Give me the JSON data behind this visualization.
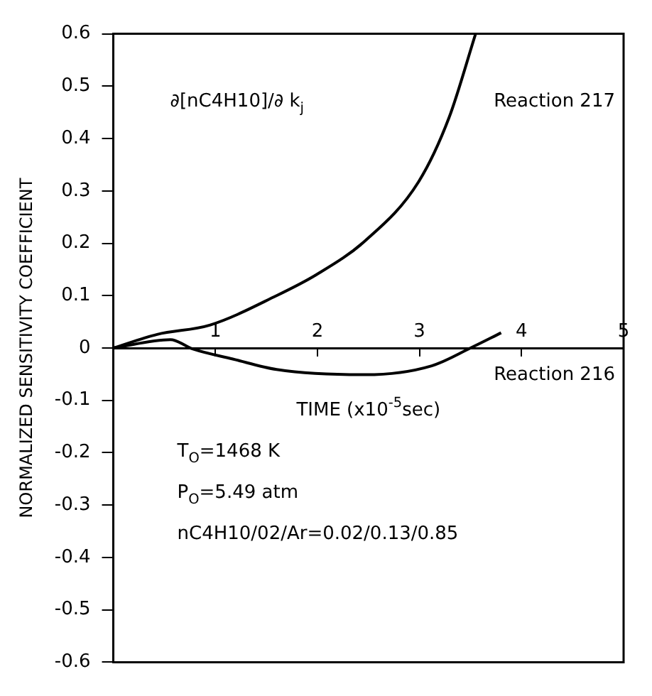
{
  "chart_data": {
    "type": "line",
    "xlabel": "TIME (x10$^{-5}$sec)",
    "ylabel": "NORMALIZED SENSITIVITY COEFFICIENT",
    "annotations": [
      "∂[nC4H10]/∂ k$_{j}$",
      "T$_{O}$=1468 K",
      "P$_{O}$=5.49 atm",
      "nC4H10/02/Ar=0.02/0.13/0.85"
    ],
    "series": [
      {
        "name": "Reaction 217",
        "color": "#000000",
        "x": [
          0,
          0.43,
          0.95,
          1.6,
          1.99,
          2.47,
          2.99,
          3.29,
          3.55
        ],
        "values": [
          0,
          0.026,
          0.044,
          0.1,
          0.14,
          0.205,
          0.317,
          0.44,
          0.6
        ]
      },
      {
        "name": "Reaction 216",
        "color": "#000000",
        "x": [
          0,
          0.56,
          0.78,
          1.17,
          1.6,
          2.47,
          3.12,
          3.5,
          3.8
        ],
        "values": [
          0,
          0.016,
          -0.002,
          -0.021,
          -0.041,
          -0.051,
          -0.034,
          0,
          0.029
        ]
      }
    ],
    "xlim": [
      0,
      5
    ],
    "xticks": [
      1,
      2,
      3,
      4,
      5
    ],
    "ylim": [
      -0.6,
      0.6
    ],
    "yticks": [
      -0.6,
      -0.5,
      -0.4,
      -0.3,
      -0.2,
      -0.1,
      0,
      0.1,
      0.2,
      0.3,
      0.4,
      0.5,
      0.6
    ],
    "grid": false,
    "legend": false,
    "marker": "none",
    "line_style": "solid"
  }
}
